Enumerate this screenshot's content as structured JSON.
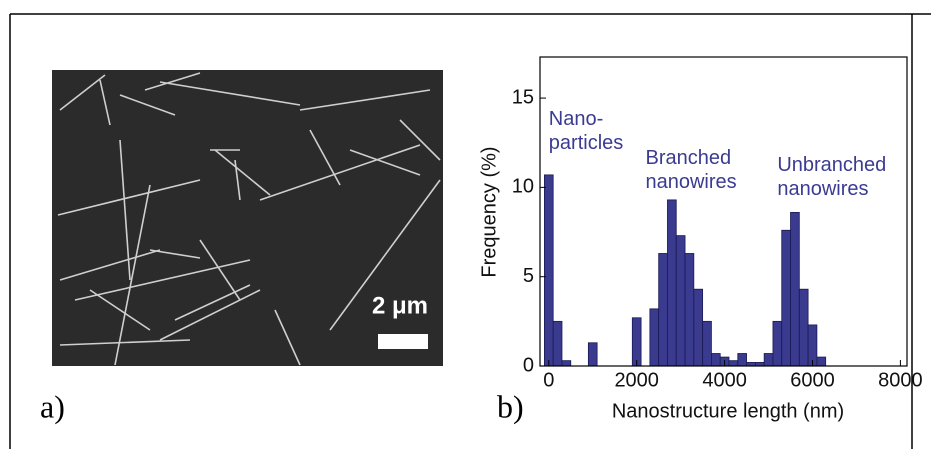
{
  "panels": {
    "a": "a)",
    "b": "b)",
    "scale_bar": "2 μm"
  },
  "chart_data": {
    "type": "histogram",
    "xlabel": "Nanostructure length (nm)",
    "ylabel": "Frequency (%)",
    "bins": [
      -100,
      100,
      300,
      500,
      700,
      900,
      1100,
      1300,
      1500,
      1700,
      1900,
      2100,
      2300,
      2500,
      2700,
      2900,
      3100,
      3300,
      3500,
      3700,
      3900,
      4100,
      4300,
      4500,
      4700,
      4900,
      5100,
      5300,
      5500,
      5700,
      5900,
      6100,
      6300
    ],
    "values": [
      10.7,
      2.5,
      0.3,
      0,
      0,
      1.3,
      0,
      0,
      0,
      0,
      2.7,
      0,
      3.2,
      6.3,
      9.3,
      7.3,
      6.3,
      4.3,
      2.5,
      0.7,
      0.5,
      0.3,
      0.7,
      0.2,
      0.2,
      0.7,
      2.5,
      7.6,
      8.6,
      4.3,
      2.3,
      0.5
    ],
    "color": "#3a3a8e",
    "xlim": [
      -200,
      8150
    ],
    "ylim": [
      0,
      17.3
    ],
    "xticks": [
      0,
      2000,
      4000,
      6000,
      8000
    ],
    "yticks": [
      0,
      5,
      10,
      15
    ],
    "annotations": [
      {
        "lines": [
          "Nano-",
          "particles"
        ],
        "x": 0,
        "y": 13.8
      },
      {
        "lines": [
          "Branched",
          "nanowires"
        ],
        "x": 2200,
        "y": 11.6
      },
      {
        "lines": [
          "Unbranched",
          "nanowires"
        ],
        "x": 5200,
        "y": 11.2
      }
    ]
  }
}
